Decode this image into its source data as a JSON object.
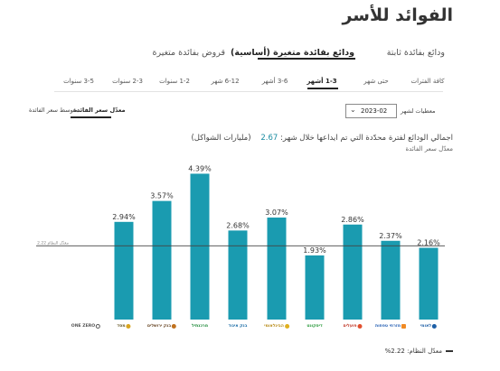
{
  "page": {
    "title": "الفوائد للأسر"
  },
  "main_tabs": [
    {
      "label": "ودائع بفائدة ثابتة",
      "active": false
    },
    {
      "label": "ودائع بفائدة متغيرة (أساسية)",
      "active": true
    },
    {
      "label": "قروض بفائدة متغيرة",
      "active": false
    }
  ],
  "period_tabs": [
    {
      "label": "كافة الفترات",
      "active": false
    },
    {
      "label": "حتى شهر",
      "active": false
    },
    {
      "label": "1-3 أشهر",
      "active": true
    },
    {
      "label": "3-6 أشهر",
      "active": false
    },
    {
      "label": "6-12 شهر",
      "active": false
    },
    {
      "label": "1-2 سنوات",
      "active": false
    },
    {
      "label": "2-3 سنوات",
      "active": false
    },
    {
      "label": "3-5 سنوات",
      "active": false
    }
  ],
  "view_tabs": [
    {
      "label": "معدّل سعر الفائدة",
      "active": true
    },
    {
      "label": "متوسط سعر الفائدة",
      "active": false
    }
  ],
  "filter": {
    "label": "معطيات لشهر",
    "value": "2023-02",
    "chevron_icon": "chevron-down-icon"
  },
  "headline": {
    "text": "اجمالي الودائع لفترة محدّدة التي تم ايداعها خلال شهر:",
    "total": "2.67",
    "unit": "(مليارات الشواكل)"
  },
  "chart_data": {
    "type": "bar",
    "subtitle": "معدّل سعر الفائدة",
    "categories": [
      "ONE ZERO",
      "מסד",
      "בנק ירושלים",
      "מרכנתיל",
      "דיסקונט",
      "הבינלאומי",
      "פועלים",
      "מזרחי טפחות",
      "לאומי",
      "בנק איגוד"
    ],
    "values": [
      2.94,
      3.57,
      4.39,
      2.68,
      3.07,
      1.93,
      2.86,
      2.37,
      2.16,
      2.16
    ],
    "value_labels": [
      "2.94%",
      "3.57%",
      "4.39%",
      "2.68%",
      "3.07%",
      "1.93%",
      "2.86%",
      "2.37%",
      "2.16%",
      ""
    ],
    "ylim": [
      0,
      5
    ],
    "average": 2.22,
    "average_line_label": "معدّل النظام 2.22",
    "bar_color": "#1a9bb0",
    "grid": false,
    "legend": {
      "label": "معدّل النظام: 2.22%",
      "position": "bottom-right"
    }
  }
}
